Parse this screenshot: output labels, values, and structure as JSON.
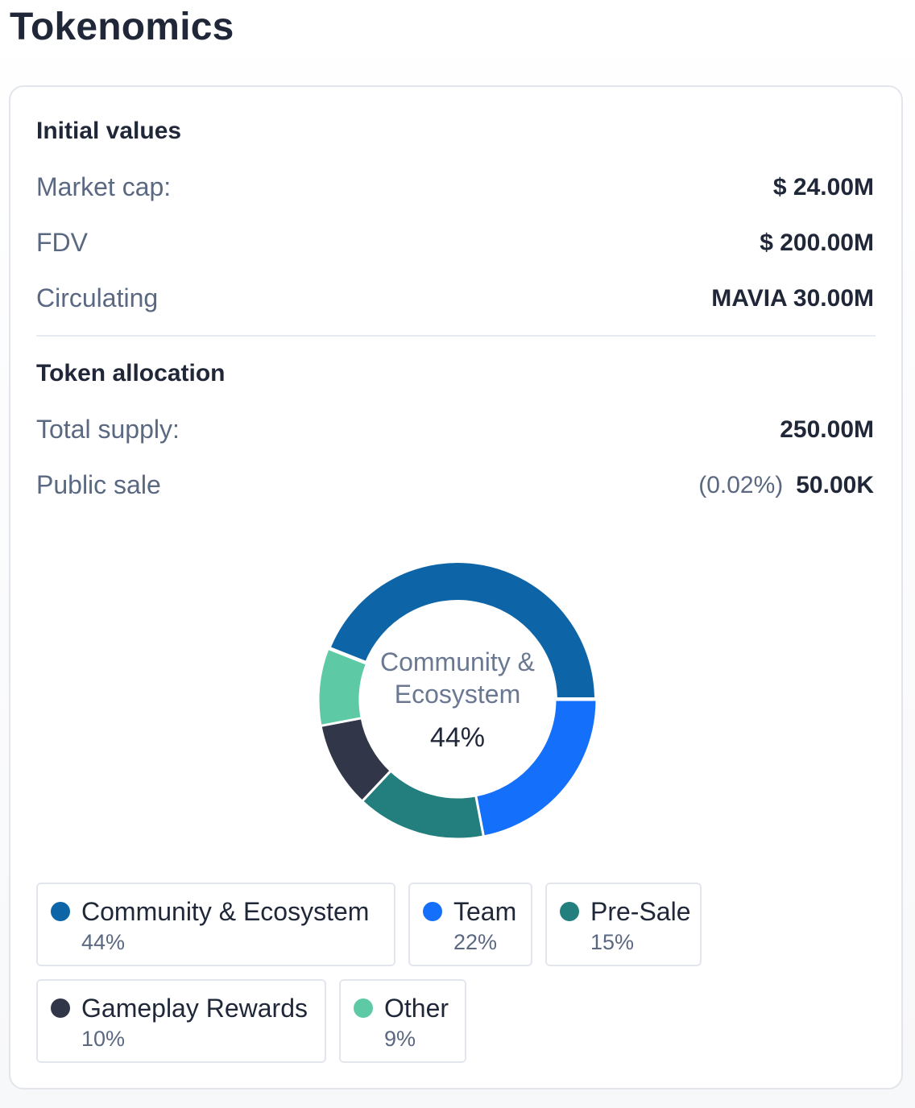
{
  "page": {
    "title": "Tokenomics"
  },
  "initial_values": {
    "heading": "Initial values",
    "rows": [
      {
        "label": "Market cap:",
        "value": "$ 24.00M"
      },
      {
        "label": "FDV",
        "value": "$ 200.00M"
      },
      {
        "label": "Circulating",
        "value": "MAVIA 30.00M"
      }
    ]
  },
  "token_allocation": {
    "heading": "Token allocation",
    "total_supply": {
      "label": "Total supply:",
      "value": "250.00M"
    },
    "public_sale": {
      "label": "Public sale",
      "percent": "(0.02%)",
      "value": "50.00K"
    }
  },
  "chart_data": {
    "type": "pie",
    "variant": "donut",
    "center_label": "Community & Ecosystem",
    "center_value": "44%",
    "slices": [
      {
        "name": "Community & Ecosystem",
        "value": 44,
        "label": "44%",
        "color": "#0d64a6"
      },
      {
        "name": "Team",
        "value": 22,
        "label": "22%",
        "color": "#1470fa"
      },
      {
        "name": "Pre-Sale",
        "value": 15,
        "label": "15%",
        "color": "#227f7d"
      },
      {
        "name": "Gameplay Rewards",
        "value": 10,
        "label": "10%",
        "color": "#313649"
      },
      {
        "name": "Other",
        "value": 9,
        "label": "9%",
        "color": "#5ecaa5"
      }
    ]
  }
}
